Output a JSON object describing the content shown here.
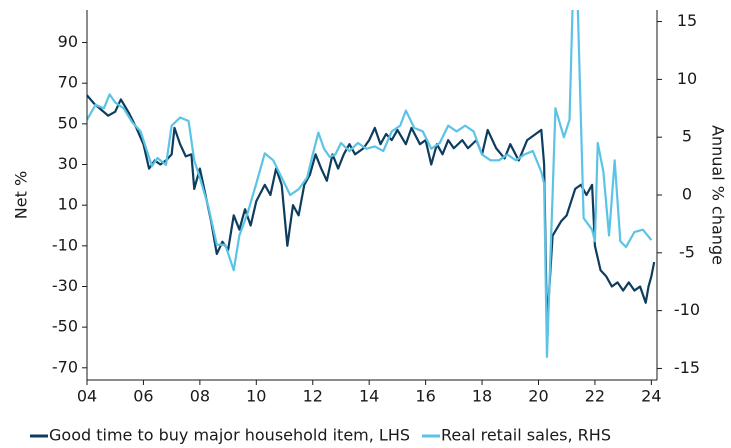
{
  "chart_data": {
    "type": "line",
    "y_label": "Net %",
    "y2_label": "Annual % change",
    "xlim": [
      2004,
      2024.2
    ],
    "xticks": [
      {
        "value": 2004,
        "label": "04"
      },
      {
        "value": 2006,
        "label": "06"
      },
      {
        "value": 2008,
        "label": "08"
      },
      {
        "value": 2010,
        "label": "10"
      },
      {
        "value": 2012,
        "label": "12"
      },
      {
        "value": 2014,
        "label": "14"
      },
      {
        "value": 2016,
        "label": "16"
      },
      {
        "value": 2018,
        "label": "18"
      },
      {
        "value": 2020,
        "label": "20"
      },
      {
        "value": 2022,
        "label": "22"
      },
      {
        "value": 2024,
        "label": "24"
      }
    ],
    "ylim": [
      -76,
      106
    ],
    "yticks": [
      -70,
      -50,
      -30,
      -10,
      10,
      30,
      50,
      70,
      90
    ],
    "y2lim": [
      -16,
      16
    ],
    "y2ticks": [
      -15,
      -10,
      -5,
      0,
      5,
      10,
      15
    ],
    "legend": "bottom",
    "series": [
      {
        "name": "Good time to buy major household item, LHS",
        "color": "#0d3d5e",
        "axis": "y",
        "x": [
          2004.0,
          2004.25,
          2004.5,
          2004.75,
          2005.0,
          2005.2,
          2005.5,
          2005.75,
          2006.0,
          2006.2,
          2006.4,
          2006.6,
          2006.8,
          2007.0,
          2007.1,
          2007.3,
          2007.5,
          2007.7,
          2007.8,
          2008.0,
          2008.2,
          2008.4,
          2008.6,
          2008.8,
          2009.0,
          2009.2,
          2009.4,
          2009.6,
          2009.8,
          2010.0,
          2010.3,
          2010.5,
          2010.7,
          2010.9,
          2011.1,
          2011.3,
          2011.5,
          2011.7,
          2011.9,
          2012.1,
          2012.3,
          2012.5,
          2012.7,
          2012.9,
          2013.1,
          2013.3,
          2013.5,
          2013.8,
          2014.0,
          2014.2,
          2014.4,
          2014.6,
          2014.8,
          2015.0,
          2015.3,
          2015.5,
          2015.8,
          2016.0,
          2016.2,
          2016.4,
          2016.6,
          2016.8,
          2017.0,
          2017.3,
          2017.5,
          2017.8,
          2018.0,
          2018.2,
          2018.5,
          2018.8,
          2019.0,
          2019.3,
          2019.6,
          2019.9,
          2020.1,
          2020.2,
          2020.3,
          2020.5,
          2020.8,
          2021.0,
          2021.3,
          2021.5,
          2021.7,
          2021.9,
          2022.0,
          2022.2,
          2022.4,
          2022.6,
          2022.8,
          2023.0,
          2023.2,
          2023.4,
          2023.6,
          2023.8,
          2023.9,
          2024.0,
          2024.1
        ],
        "values": [
          64,
          60,
          57,
          54,
          56,
          62,
          55,
          48,
          40,
          28,
          32,
          30,
          32,
          35,
          48,
          40,
          34,
          35,
          18,
          28,
          15,
          2,
          -14,
          -8,
          -12,
          5,
          -2,
          8,
          0,
          12,
          20,
          15,
          28,
          20,
          -10,
          10,
          5,
          20,
          25,
          35,
          28,
          22,
          35,
          28,
          35,
          40,
          35,
          38,
          42,
          48,
          40,
          45,
          42,
          47,
          40,
          48,
          40,
          42,
          30,
          40,
          35,
          42,
          38,
          42,
          38,
          42,
          35,
          47,
          38,
          33,
          40,
          32,
          42,
          45,
          47,
          30,
          -50,
          -5,
          2,
          5,
          18,
          20,
          15,
          20,
          -10,
          -22,
          -25,
          -30,
          -28,
          -32,
          -28,
          -32,
          -30,
          -38,
          -30,
          -25,
          -18
        ]
      },
      {
        "name": "Real retail sales, RHS",
        "color": "#5bc3e6",
        "axis": "y2",
        "x": [
          2004.0,
          2004.3,
          2004.6,
          2004.8,
          2005.0,
          2005.3,
          2005.6,
          2005.9,
          2006.1,
          2006.3,
          2006.5,
          2006.8,
          2007.0,
          2007.3,
          2007.6,
          2007.8,
          2008.0,
          2008.3,
          2008.6,
          2008.9,
          2009.2,
          2009.4,
          2009.7,
          2010.0,
          2010.3,
          2010.6,
          2010.9,
          2011.2,
          2011.5,
          2011.8,
          2012.0,
          2012.2,
          2012.4,
          2012.6,
          2012.8,
          2013.0,
          2013.3,
          2013.6,
          2013.9,
          2014.2,
          2014.5,
          2014.8,
          2015.1,
          2015.3,
          2015.6,
          2015.9,
          2016.2,
          2016.5,
          2016.8,
          2017.1,
          2017.4,
          2017.7,
          2018.0,
          2018.3,
          2018.6,
          2018.9,
          2019.2,
          2019.5,
          2019.8,
          2020.1,
          2020.2,
          2020.3,
          2020.5,
          2020.6,
          2020.9,
          2021.1,
          2021.25,
          2021.35,
          2021.6,
          2021.9,
          2022.0,
          2022.1,
          2022.3,
          2022.5,
          2022.7,
          2022.9,
          2023.1,
          2023.4,
          2023.7,
          2024.0
        ],
        "values": [
          6.5,
          7.8,
          7.5,
          8.7,
          8,
          7.5,
          6.3,
          5.5,
          4,
          2.5,
          3.2,
          2.6,
          6,
          6.7,
          6.4,
          3,
          1.5,
          -1,
          -4.3,
          -4.3,
          -6.5,
          -3.5,
          -1.5,
          1,
          3.6,
          3,
          1.5,
          0,
          0.5,
          1.5,
          3.5,
          5.4,
          4,
          3.3,
          3.5,
          4.5,
          3.8,
          4.5,
          4,
          4.2,
          3.8,
          5.5,
          6,
          7.3,
          5.8,
          5.5,
          4,
          4.5,
          6,
          5.5,
          6,
          5.5,
          3.5,
          3,
          3,
          3.5,
          3,
          3.5,
          3.8,
          2,
          1,
          -14,
          0,
          7.5,
          5,
          6.5,
          20,
          20,
          -2,
          -3,
          -4,
          4.5,
          2,
          -3.5,
          3,
          -4,
          -4.5,
          -3.2,
          -3,
          -3.9
        ]
      }
    ]
  }
}
